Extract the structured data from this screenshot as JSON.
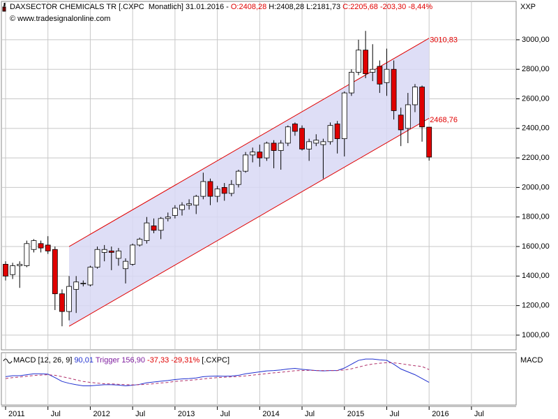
{
  "chart_data": {
    "type": "candlestick",
    "header": [
      {
        "text": "DAXSECTOR CHEMICALS TR [.CXPC  Monatlich] 31.01.2016 - ",
        "color": "#000000"
      },
      {
        "text": "O:2408,28",
        "color": "#e00000"
      },
      {
        "text": " H:2408,28 L:2181,73 ",
        "color": "#000000"
      },
      {
        "text": "C:2205,68 -203,30 -8,44%",
        "color": "#e00000"
      }
    ],
    "subtitle": "© www.tradesignalonline.com",
    "axis_label": "XXP",
    "categories": [
      "2011",
      null,
      null,
      null,
      null,
      null,
      "Jul",
      null,
      null,
      null,
      null,
      null,
      "2012",
      null,
      null,
      null,
      null,
      null,
      "Jul",
      null,
      null,
      null,
      null,
      null,
      "2013",
      null,
      null,
      null,
      null,
      null,
      "Jul",
      null,
      null,
      null,
      null,
      null,
      "2014",
      null,
      null,
      null,
      null,
      null,
      "Jul",
      null,
      null,
      null,
      null,
      null,
      "2015",
      null,
      null,
      null,
      null,
      null,
      "Jul",
      null,
      null,
      null,
      null,
      null,
      "2016",
      null,
      null,
      null,
      null,
      null,
      "Jul"
    ],
    "open": [
      1480,
      1410,
      1470,
      1470,
      1580,
      1620,
      1610,
      1580,
      1280,
      1160,
      1310,
      1350,
      1340,
      1460,
      1560,
      1570,
      1520,
      1450,
      1480,
      1610,
      1640,
      1740,
      1710,
      1790,
      1810,
      1850,
      1880,
      1880,
      1940,
      2040,
      1940,
      2000,
      1960,
      2020,
      2110,
      2220,
      2240,
      2200,
      2300,
      2250,
      2300,
      2430,
      2400,
      2260,
      2300,
      2290,
      2310,
      2430,
      2330,
      2640,
      2780,
      2930,
      2780,
      2820,
      2710,
      2800,
      2490,
      2400,
      2560,
      2680,
      2408.28,
      null,
      null,
      null,
      null,
      null,
      null
    ],
    "high": [
      1500,
      1490,
      1500,
      1640,
      1650,
      1640,
      1670,
      1600,
      1310,
      1400,
      1400,
      1370,
      1470,
      1600,
      1610,
      1600,
      1590,
      1520,
      1620,
      1660,
      1800,
      1790,
      1800,
      1830,
      1880,
      1900,
      1920,
      1950,
      2100,
      2060,
      2010,
      2030,
      2050,
      2120,
      2240,
      2270,
      2290,
      2310,
      2320,
      2320,
      2420,
      2440,
      2420,
      2330,
      2360,
      2330,
      2440,
      2450,
      2650,
      2800,
      3000,
      3060,
      2970,
      2860,
      2940,
      2860,
      2540,
      2640,
      2700,
      2690,
      2408.28,
      null,
      null,
      null,
      null,
      null,
      null
    ],
    "low": [
      1370,
      1380,
      1320,
      1460,
      1560,
      1560,
      1550,
      1170,
      1060,
      1100,
      1150,
      1330,
      1330,
      1450,
      1500,
      1440,
      1470,
      1350,
      1470,
      1600,
      1620,
      1690,
      1650,
      1770,
      1790,
      1810,
      1850,
      1820,
      1920,
      1880,
      1900,
      1910,
      1940,
      2000,
      2100,
      2170,
      2140,
      2180,
      2130,
      2120,
      2280,
      2350,
      2250,
      2180,
      2280,
      2060,
      2290,
      2230,
      2210,
      2620,
      2760,
      2740,
      2720,
      2640,
      2620,
      2460,
      2280,
      2300,
      2510,
      2310,
      2181.73,
      null,
      null,
      null,
      null,
      null,
      null
    ],
    "close": [
      1400,
      1470,
      1480,
      1620,
      1640,
      1590,
      1570,
      1280,
      1160,
      1330,
      1360,
      1352,
      1460,
      1580,
      1580,
      1560,
      1570,
      1500,
      1610,
      1650,
      1760,
      1710,
      1790,
      1800,
      1860,
      1880,
      1890,
      1940,
      2040,
      1940,
      1990,
      1960,
      2020,
      2110,
      2220,
      2240,
      2200,
      2300,
      2250,
      2300,
      2410,
      2380,
      2260,
      2310,
      2320,
      2310,
      2420,
      2330,
      2640,
      2780,
      2930,
      2770,
      2800,
      2700,
      2800,
      2520,
      2390,
      2560,
      2680,
      2410,
      2205.68,
      null,
      null,
      null,
      null,
      null,
      null
    ],
    "up_color": "#ffffff",
    "down_color": "#e00000",
    "ylim": [
      905,
      3255
    ],
    "yticks": [
      {
        "value": 1000,
        "label": "1000,00"
      },
      {
        "value": 1200,
        "label": "1200,00"
      },
      {
        "value": 1400,
        "label": "1400,00"
      },
      {
        "value": 1600,
        "label": "1600,00"
      },
      {
        "value": 1800,
        "label": "1800,00"
      },
      {
        "value": 2000,
        "label": "2000,00"
      },
      {
        "value": 2200,
        "label": "2200,00"
      },
      {
        "value": 2400,
        "label": "2400,00"
      },
      {
        "value": 2600,
        "label": "2600,00"
      },
      {
        "value": 2800,
        "label": "2800,00"
      },
      {
        "value": 3000,
        "label": "3000,00"
      }
    ],
    "grid": true,
    "channel": {
      "color": "#e00000",
      "fill": "#d8d8f4",
      "upper": [
        null,
        null,
        null,
        null,
        null,
        null,
        null,
        null,
        null,
        1600,
        null,
        null,
        null,
        null,
        null,
        null,
        null,
        null,
        null,
        null,
        null,
        null,
        null,
        null,
        null,
        null,
        null,
        null,
        null,
        null,
        null,
        null,
        null,
        null,
        null,
        null,
        null,
        null,
        null,
        null,
        null,
        null,
        null,
        null,
        null,
        null,
        null,
        null,
        null,
        null,
        null,
        null,
        null,
        null,
        null,
        null,
        null,
        null,
        null,
        null,
        3010.83,
        null,
        null,
        null,
        null,
        null,
        null
      ],
      "lower": [
        null,
        null,
        null,
        null,
        null,
        null,
        null,
        null,
        null,
        1060,
        null,
        null,
        null,
        null,
        null,
        null,
        null,
        null,
        null,
        null,
        null,
        null,
        null,
        null,
        null,
        null,
        null,
        null,
        null,
        null,
        null,
        null,
        null,
        null,
        null,
        null,
        null,
        null,
        null,
        null,
        null,
        null,
        null,
        null,
        null,
        null,
        null,
        null,
        null,
        null,
        null,
        null,
        null,
        null,
        null,
        null,
        null,
        null,
        null,
        null,
        2468.76,
        null,
        null,
        null,
        null,
        null,
        null
      ],
      "end_labels": [
        "3010,83",
        "2468,76"
      ]
    },
    "macd": {
      "axis_label": "MACD",
      "legend": [
        {
          "text": "MACD [12, 26, 9] ",
          "color": "#000000"
        },
        {
          "text": "90,01",
          "color": "#2030d0"
        },
        {
          "text": " Trigger 156,90",
          "color": "#8020a0"
        },
        {
          "text": " -37,33 -29,31%",
          "color": "#e00000"
        },
        {
          "text": " [.CXPC]",
          "color": "#000000"
        }
      ],
      "ylim": [
        -21,
        238
      ],
      "series": [
        {
          "color": "#2030d0",
          "dashed": false,
          "values": [
            120,
            125,
            125,
            130,
            135,
            135,
            133,
            115,
            95,
            85,
            78,
            72,
            72,
            75,
            78,
            78,
            76,
            72,
            75,
            80,
            88,
            92,
            96,
            100,
            105,
            108,
            110,
            113,
            120,
            122,
            123,
            122,
            123,
            127,
            135,
            140,
            145,
            150,
            152,
            155,
            160,
            163,
            158,
            155,
            152,
            150,
            152,
            152,
            165,
            185,
            205,
            212,
            212,
            208,
            205,
            185,
            160,
            145,
            130,
            110,
            90.01,
            null,
            null,
            null,
            null,
            null,
            null
          ]
        },
        {
          "color": "#b0306a",
          "dashed": true,
          "values": [
            110,
            115,
            118,
            122,
            126,
            128,
            130,
            127,
            120,
            112,
            103,
            95,
            90,
            86,
            83,
            82,
            80,
            78,
            77,
            78,
            80,
            83,
            87,
            90,
            95,
            98,
            101,
            104,
            108,
            112,
            115,
            117,
            119,
            121,
            124,
            128,
            132,
            136,
            140,
            143,
            147,
            151,
            152,
            153,
            152,
            152,
            152,
            152,
            155,
            161,
            170,
            179,
            186,
            190,
            193,
            192,
            188,
            182,
            177,
            173,
            156.9,
            null,
            null,
            null,
            null,
            null,
            null
          ]
        }
      ]
    }
  }
}
